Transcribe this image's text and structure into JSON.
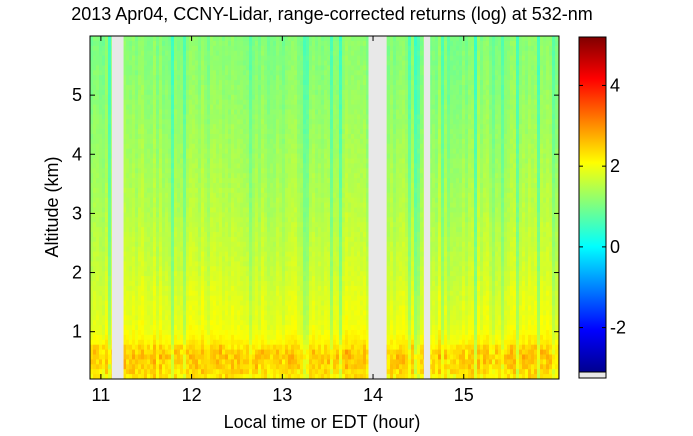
{
  "chart_data": {
    "type": "heatmap",
    "title": "2013 Apr04, CCNY-Lidar, range-corrected returns (log) at 532-nm",
    "xlabel": "Local time or EDT (hour)",
    "ylabel": "Altitude (km)",
    "xlim": [
      10.88,
      16.05
    ],
    "ylim": [
      0.2,
      6.0
    ],
    "xticks": [
      11,
      12,
      13,
      14,
      15
    ],
    "yticks": [
      1,
      2,
      3,
      4,
      5
    ],
    "colorbar": {
      "ticks": [
        -2,
        0,
        2,
        4
      ],
      "range": [
        -3.1,
        5.2
      ],
      "colormap": "jet"
    },
    "missing_data_color": "#e8e8e8",
    "gaps": [
      {
        "x0": 11.12,
        "x1": 11.25
      },
      {
        "x0": 13.95,
        "x1": 14.15
      },
      {
        "x0": 14.56,
        "x1": 14.63
      }
    ],
    "profile": {
      "altitude_km": [
        0.2,
        0.4,
        0.6,
        0.8,
        1.0,
        1.2,
        1.5,
        2.0,
        2.5,
        3.0,
        4.0,
        5.0,
        6.0
      ],
      "log_return": [
        2.2,
        2.4,
        2.5,
        2.2,
        2.0,
        1.9,
        1.85,
        1.7,
        1.6,
        1.5,
        1.35,
        1.2,
        1.1
      ]
    }
  }
}
